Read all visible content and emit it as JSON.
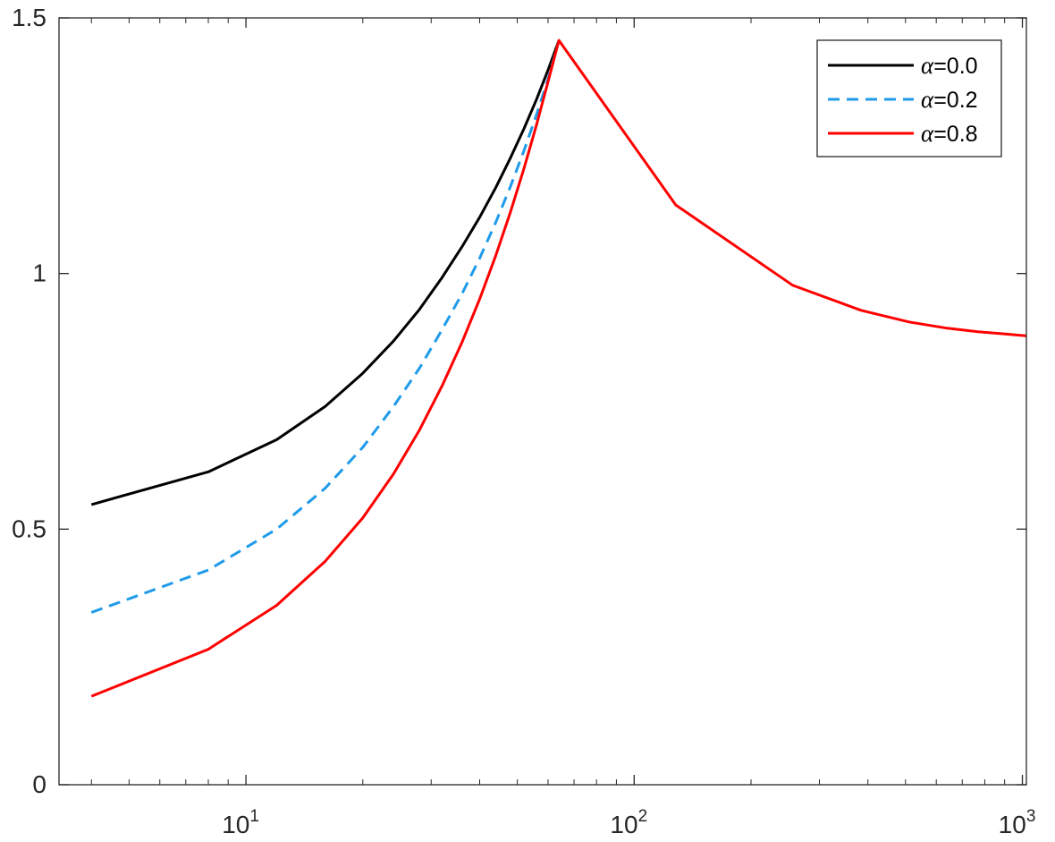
{
  "chart_data": {
    "type": "line",
    "title": "",
    "xlabel": "",
    "ylabel": "",
    "xscale": "log",
    "xlim": [
      3.3,
      1024
    ],
    "ylim": [
      0,
      1.5
    ],
    "grid": false,
    "legend_position": "top-right",
    "y_ticks": [
      {
        "value": 0,
        "label": "0"
      },
      {
        "value": 0.5,
        "label": "0.5"
      },
      {
        "value": 1,
        "label": "1"
      },
      {
        "value": 1.5,
        "label": "1.5"
      }
    ],
    "x_ticks": [
      {
        "value": 10,
        "base": "10",
        "exp": "1"
      },
      {
        "value": 100,
        "base": "10",
        "exp": "2"
      },
      {
        "value": 1000,
        "base": "10",
        "exp": "3"
      }
    ],
    "series": [
      {
        "name": "α=0.0",
        "name_symbol": "α",
        "name_value": "=0.0",
        "color": "#000000",
        "dash": "solid",
        "x": [
          4,
          8,
          12,
          16,
          20,
          24,
          28,
          32,
          36,
          40,
          44,
          48,
          52,
          56,
          60,
          64
        ],
        "y": [
          0.548,
          0.612,
          0.675,
          0.74,
          0.805,
          0.868,
          0.93,
          0.992,
          1.052,
          1.11,
          1.168,
          1.226,
          1.283,
          1.34,
          1.398,
          1.456
        ]
      },
      {
        "name": "α=0.2",
        "name_symbol": "α",
        "name_value": "=0.2",
        "color": "#1f9bea",
        "dash": "dashed",
        "x": [
          4,
          8,
          12,
          16,
          20,
          24,
          28,
          32,
          36,
          40,
          44,
          48,
          52,
          56,
          60,
          64
        ],
        "y": [
          0.337,
          0.42,
          0.5,
          0.58,
          0.66,
          0.74,
          0.815,
          0.89,
          0.96,
          1.03,
          1.1,
          1.17,
          1.24,
          1.31,
          1.38,
          1.456
        ]
      },
      {
        "name": "α=0.8",
        "name_symbol": "α",
        "name_value": "=0.8",
        "color": "#ff0000",
        "dash": "solid",
        "x": [
          4,
          8,
          12,
          16,
          20,
          24,
          28,
          32,
          36,
          40,
          44,
          48,
          52,
          56,
          60,
          64,
          128,
          256,
          384,
          512,
          640,
          768,
          896,
          1024
        ],
        "y": [
          0.173,
          0.265,
          0.351,
          0.437,
          0.522,
          0.608,
          0.694,
          0.78,
          0.865,
          0.95,
          1.035,
          1.12,
          1.205,
          1.29,
          1.375,
          1.456,
          1.134,
          0.977,
          0.928,
          0.905,
          0.893,
          0.886,
          0.882,
          0.878
        ]
      }
    ]
  }
}
